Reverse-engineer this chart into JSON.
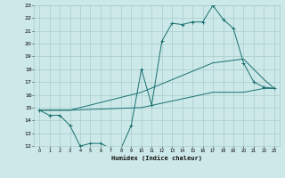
{
  "xlabel": "Humidex (Indice chaleur)",
  "xlim": [
    -0.5,
    23.5
  ],
  "ylim": [
    12,
    23
  ],
  "yticks": [
    12,
    13,
    14,
    15,
    16,
    17,
    18,
    19,
    20,
    21,
    22,
    23
  ],
  "xticks": [
    0,
    1,
    2,
    3,
    4,
    5,
    6,
    7,
    8,
    9,
    10,
    11,
    12,
    13,
    14,
    15,
    16,
    17,
    18,
    19,
    20,
    21,
    22,
    23
  ],
  "bg_color": "#cce8e8",
  "grid_color": "#aacccc",
  "line_color": "#1a7070",
  "line1_x": [
    0,
    1,
    2,
    3,
    4,
    5,
    6,
    7,
    8,
    9,
    10,
    11,
    12,
    13,
    14,
    15,
    16,
    17,
    18,
    19,
    20,
    21,
    22,
    23
  ],
  "line1_y": [
    14.8,
    14.4,
    14.4,
    13.6,
    12.0,
    12.2,
    12.2,
    11.8,
    11.8,
    13.6,
    18.0,
    15.2,
    20.2,
    21.6,
    21.5,
    21.7,
    21.7,
    23.0,
    21.9,
    21.2,
    18.5,
    17.0,
    16.6,
    16.5
  ],
  "line2_x": [
    0,
    3,
    10,
    17,
    20,
    22,
    23
  ],
  "line2_y": [
    14.8,
    14.8,
    16.2,
    18.5,
    18.8,
    17.2,
    16.5
  ],
  "line3_x": [
    0,
    3,
    10,
    17,
    20,
    22,
    23
  ],
  "line3_y": [
    14.8,
    14.8,
    15.0,
    16.2,
    16.2,
    16.5,
    16.5
  ]
}
